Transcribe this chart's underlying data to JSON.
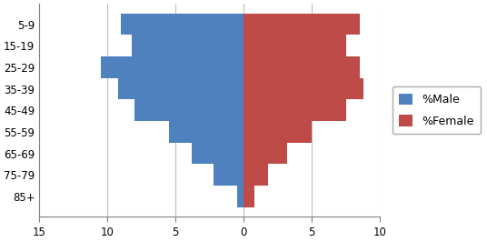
{
  "age_groups": [
    "5-9",
    "15-19",
    "25-29",
    "35-39",
    "45-49",
    "55-59",
    "65-69",
    "75-79",
    "85+"
  ],
  "male": [
    9.0,
    8.2,
    10.5,
    9.2,
    8.0,
    5.5,
    3.8,
    2.2,
    0.5
  ],
  "female": [
    8.5,
    7.5,
    8.5,
    8.8,
    7.5,
    5.0,
    3.2,
    1.8,
    0.8
  ],
  "male_color": "#4E81BD",
  "female_color": "#BE4B48",
  "bg_color": "#FFFFFF",
  "plot_bg": "#FFFFFF",
  "xlim_left": -15,
  "xlim_right": 10,
  "xticks": [
    -15,
    -10,
    -5,
    0,
    5,
    10
  ],
  "xticklabels": [
    "15",
    "10",
    "5",
    "0",
    "5",
    "10"
  ],
  "grid_color": "#BFBFBF",
  "legend_labels": [
    "%Male",
    "%Female"
  ],
  "bar_height": 1.0,
  "tick_fontsize": 8.5,
  "legend_fontsize": 9
}
